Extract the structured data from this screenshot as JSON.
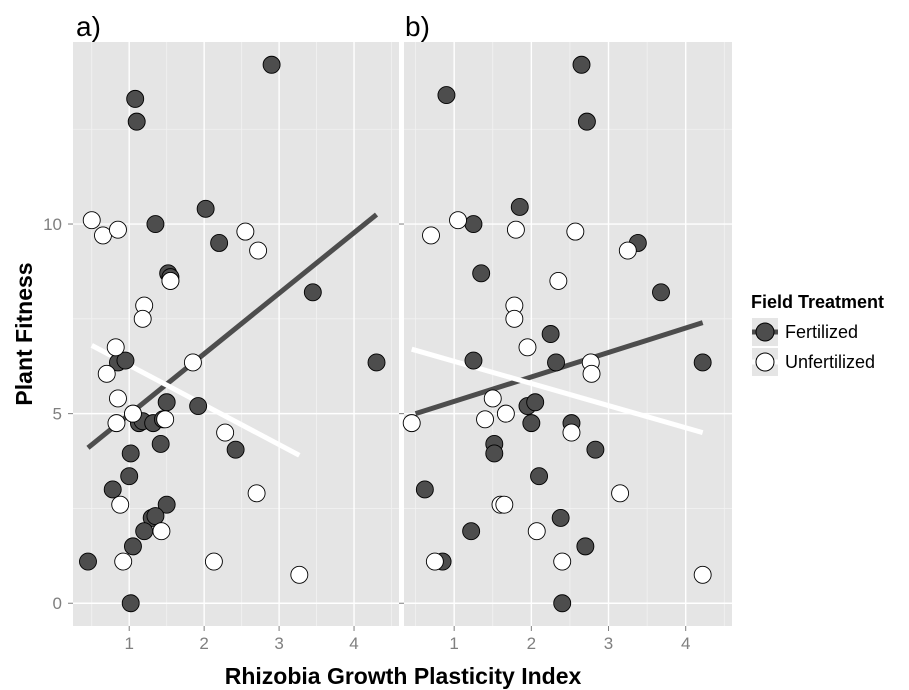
{
  "chart_data": {
    "type": "scatter",
    "xlabel": "Rhizobia Growth Plasticity Index",
    "ylabel": "Plant Fitness",
    "ylim": [
      -0.6,
      14.8
    ],
    "yticks": [
      "0",
      "5",
      "10"
    ],
    "ytick_values": [
      0,
      5,
      10
    ],
    "xticks": [
      "1",
      "2",
      "3",
      "4"
    ],
    "xtick_values": [
      1,
      2,
      3,
      4
    ],
    "grid": true,
    "legend": {
      "title": "Field Treatment",
      "position": "right",
      "entries": [
        {
          "label": "Fertilized",
          "fill": "#4d4d4d",
          "line": "#4d4d4d"
        },
        {
          "label": "Unfertilized",
          "fill": "#ffffff",
          "line": "#ffffff"
        }
      ]
    },
    "panels": [
      {
        "tag": "a)",
        "xlim": [
          0.25,
          4.6
        ],
        "series": [
          {
            "name": "Fertilized",
            "x": [
              0.45,
              1.08,
              1.1,
              1.35,
              1.52,
              2.02,
              2.2,
              2.9,
              3.45,
              4.3,
              1.13,
              1.55,
              1.55,
              0.85,
              0.95,
              1.18,
              1.32,
              1.5,
              1.42,
              1.45,
              1.92,
              2.42,
              1.02,
              1.0,
              1.3,
              1.5,
              0.78,
              1.2,
              1.35,
              1.05,
              1.02
            ],
            "y": [
              1.1,
              13.3,
              12.7,
              10.0,
              8.7,
              10.4,
              9.5,
              14.2,
              8.2,
              6.35,
              4.75,
              8.6,
              8.5,
              6.35,
              6.4,
              4.8,
              4.75,
              5.3,
              4.2,
              4.85,
              5.2,
              4.05,
              3.95,
              3.35,
              2.25,
              2.6,
              3.0,
              1.9,
              2.3,
              1.5,
              0.0
            ]
          },
          {
            "name": "Unfertilized",
            "x": [
              0.5,
              0.65,
              0.85,
              1.2,
              1.18,
              1.55,
              2.55,
              2.72,
              0.82,
              0.7,
              0.85,
              0.83,
              1.05,
              1.48,
              1.85,
              2.28,
              0.88,
              0.92,
              1.43,
              2.13,
              2.7,
              3.27
            ],
            "y": [
              10.1,
              9.7,
              9.85,
              7.85,
              7.5,
              8.5,
              9.8,
              9.3,
              6.75,
              6.05,
              5.4,
              4.75,
              5.0,
              4.85,
              6.35,
              4.5,
              2.6,
              1.1,
              1.9,
              1.1,
              2.9,
              0.75
            ]
          }
        ],
        "fits": [
          {
            "name": "Fertilized",
            "x": [
              0.45,
              4.3
            ],
            "y": [
              4.1,
              10.25
            ]
          },
          {
            "name": "Unfertilized",
            "x": [
              0.5,
              3.27
            ],
            "y": [
              6.8,
              3.9
            ]
          }
        ]
      },
      {
        "tag": "b)",
        "xlim": [
          0.35,
          4.6
        ],
        "series": [
          {
            "name": "Fertilized",
            "x": [
              0.9,
              1.25,
              1.35,
              1.85,
              2.65,
              2.72,
              3.38,
              3.68,
              4.22,
              1.25,
              2.25,
              2.32,
              1.95,
              2.05,
              2.0,
              1.52,
              1.52,
              2.52,
              2.83,
              0.62,
              2.1,
              2.38,
              1.22,
              2.7,
              0.85,
              2.4
            ],
            "y": [
              13.4,
              10.0,
              8.7,
              10.45,
              14.2,
              12.7,
              9.5,
              8.2,
              6.35,
              6.4,
              7.1,
              6.35,
              5.2,
              5.3,
              4.75,
              4.2,
              3.95,
              4.75,
              4.05,
              3.0,
              3.35,
              2.25,
              1.9,
              1.5,
              1.1,
              0.0
            ]
          },
          {
            "name": "Unfertilized",
            "x": [
              1.05,
              0.7,
              1.8,
              2.57,
              3.25,
              2.35,
              1.78,
              1.78,
              1.95,
              2.77,
              2.78,
              0.45,
              1.5,
              1.4,
              1.67,
              2.52,
              1.6,
              1.65,
              2.07,
              2.4,
              3.15,
              0.75,
              4.22
            ],
            "y": [
              10.1,
              9.7,
              9.85,
              9.8,
              9.3,
              8.5,
              7.85,
              7.5,
              6.75,
              6.35,
              6.05,
              4.75,
              5.4,
              4.85,
              5.0,
              4.5,
              2.6,
              2.6,
              1.9,
              1.1,
              2.9,
              1.1,
              0.75
            ]
          }
        ],
        "fits": [
          {
            "name": "Fertilized",
            "x": [
              0.5,
              4.22
            ],
            "y": [
              5.0,
              7.4
            ]
          },
          {
            "name": "Unfertilized",
            "x": [
              0.45,
              4.22
            ],
            "y": [
              6.7,
              4.5
            ]
          }
        ]
      }
    ]
  }
}
